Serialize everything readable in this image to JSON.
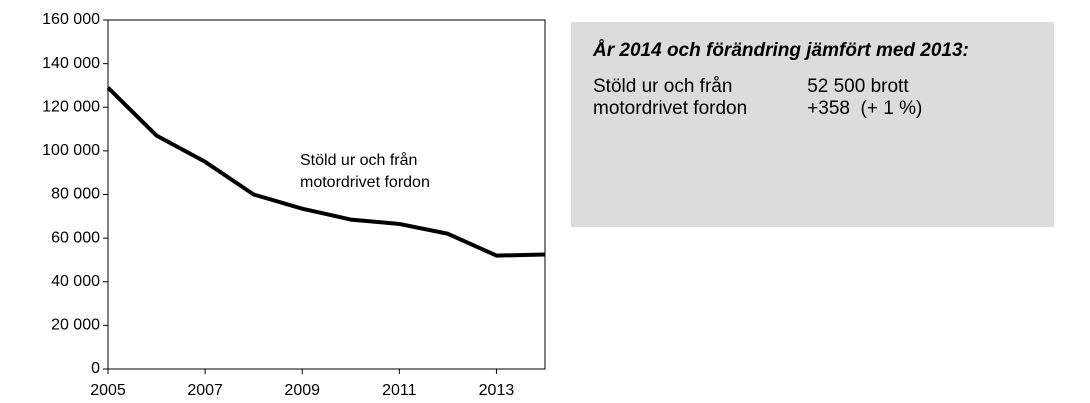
{
  "chart_data": {
    "type": "line",
    "x": [
      2005,
      2006,
      2007,
      2008,
      2009,
      2010,
      2011,
      2012,
      2013,
      2014
    ],
    "series": [
      {
        "name": "Stöld ur och från motordrivet fordon",
        "color": "#000000",
        "values": [
          129000,
          107000,
          95000,
          80000,
          73500,
          68500,
          66500,
          62000,
          52000,
          52500
        ]
      }
    ],
    "annotation": [
      "Stöld ur och från",
      "motordrivet fordon"
    ],
    "xlim": [
      2005,
      2014
    ],
    "xticks": [
      2005,
      2007,
      2009,
      2011,
      2013
    ],
    "ylim": [
      0,
      160000
    ],
    "yticks": [
      0,
      {
        "value": 20000,
        "label": "20 000"
      },
      {
        "value": 40000,
        "label": "40 000"
      },
      {
        "value": 60000,
        "label": "60 000"
      },
      {
        "value": 80000,
        "label": "80 000"
      },
      {
        "value": 100000,
        "label": "100 000"
      },
      {
        "value": 120000,
        "label": "120 000"
      },
      {
        "value": 140000,
        "label": "140 000"
      },
      {
        "value": 160000,
        "label": "160 000"
      }
    ],
    "grid": false
  },
  "info_box": {
    "title": "År 2014 och förändring jämfört med 2013:",
    "rows": [
      [
        "Stöld ur och från",
        "52 500 brott"
      ],
      [
        "motordrivet fordon",
        "+358  (+ 1 %)"
      ]
    ]
  }
}
